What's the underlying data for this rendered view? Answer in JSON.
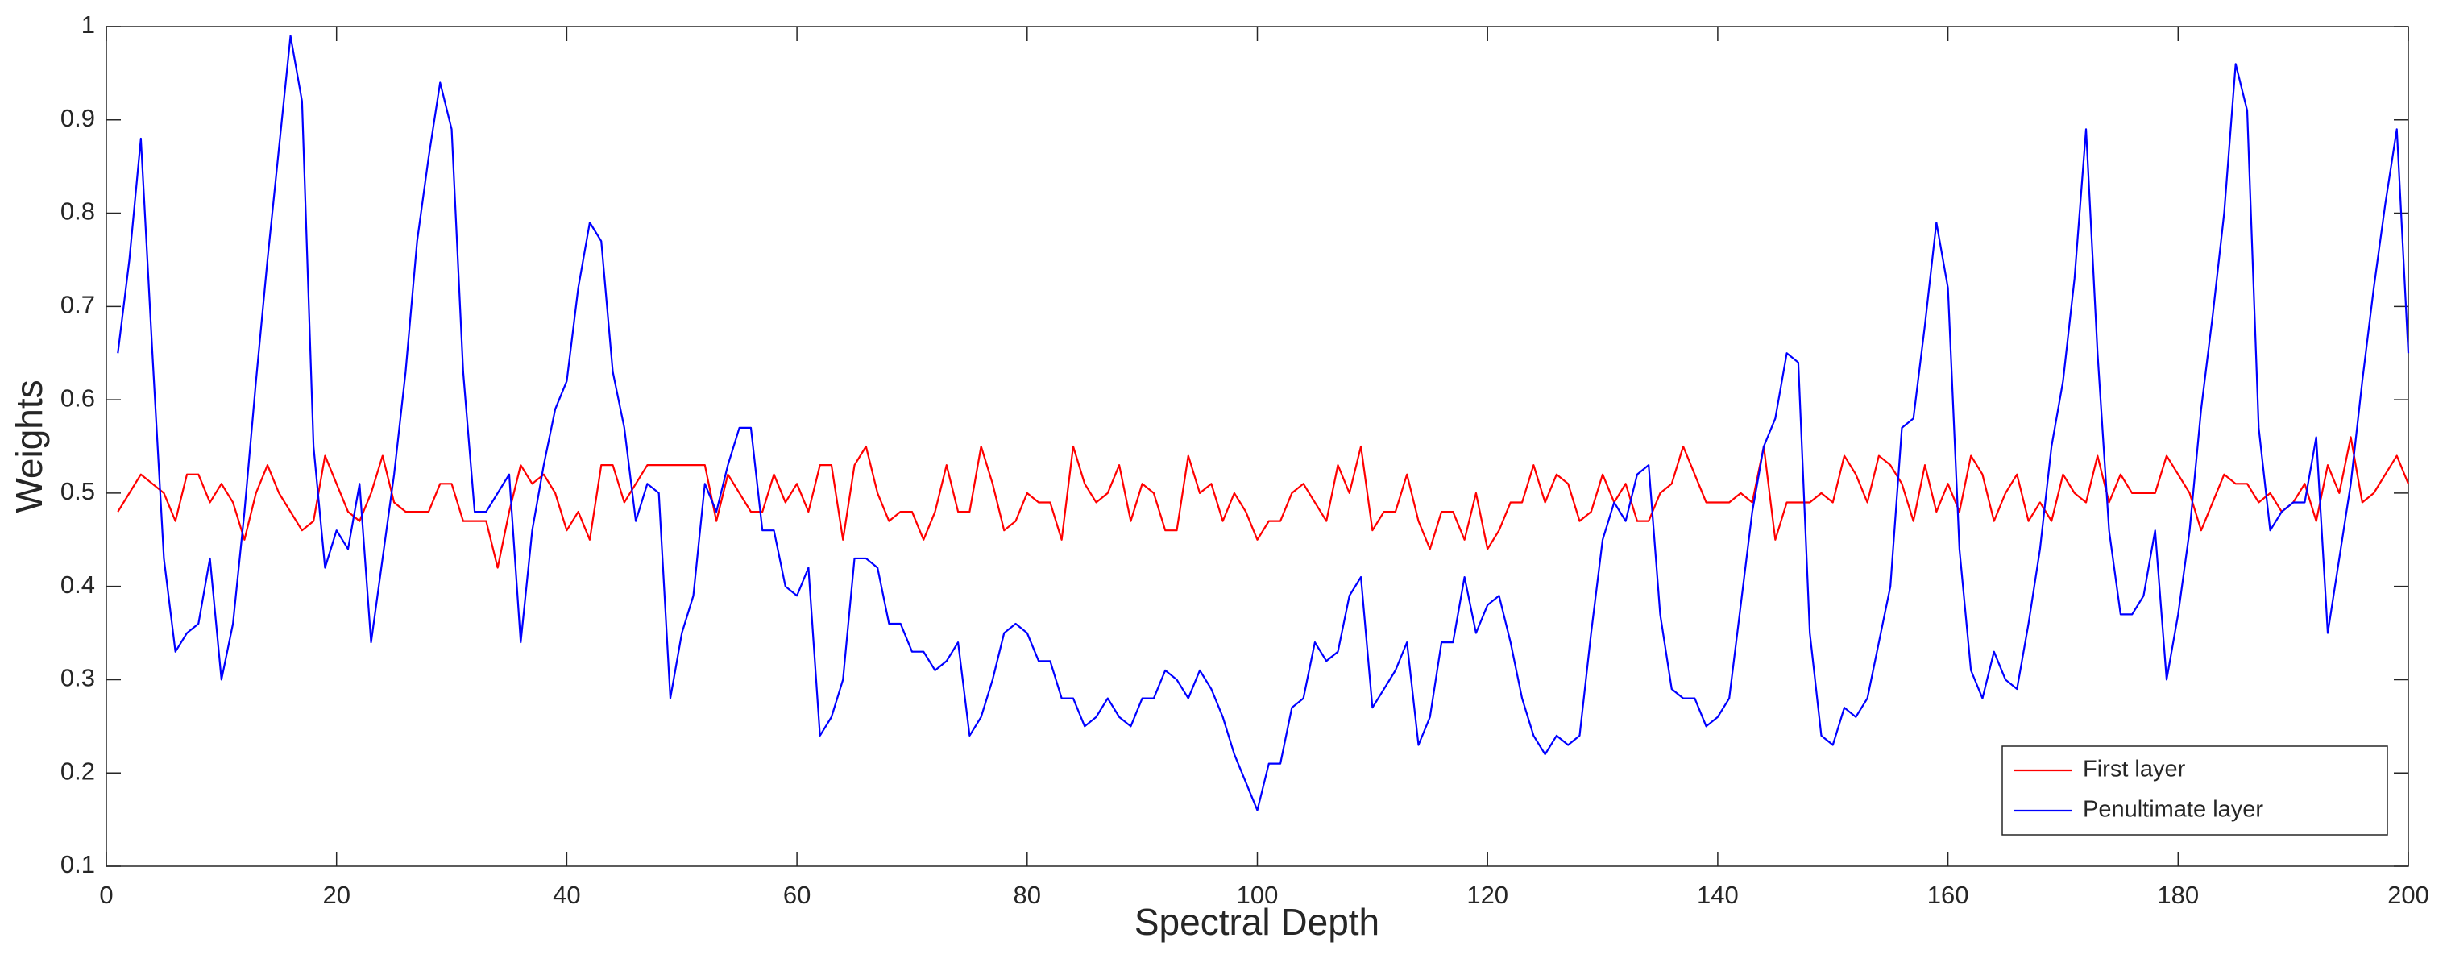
{
  "chart_data": {
    "type": "line",
    "xlabel": "Spectral Depth",
    "ylabel": "Weights",
    "x": [
      1,
      2,
      3,
      4,
      5,
      6,
      7,
      8,
      9,
      10,
      11,
      12,
      13,
      14,
      15,
      16,
      17,
      18,
      19,
      20,
      21,
      22,
      23,
      24,
      25,
      26,
      27,
      28,
      29,
      30,
      31,
      32,
      33,
      34,
      35,
      36,
      37,
      38,
      39,
      40,
      41,
      42,
      43,
      44,
      45,
      46,
      47,
      48,
      49,
      50,
      51,
      52,
      53,
      54,
      55,
      56,
      57,
      58,
      59,
      60,
      61,
      62,
      63,
      64,
      65,
      66,
      67,
      68,
      69,
      70,
      71,
      72,
      73,
      74,
      75,
      76,
      77,
      78,
      79,
      80,
      81,
      82,
      83,
      84,
      85,
      86,
      87,
      88,
      89,
      90,
      91,
      92,
      93,
      94,
      95,
      96,
      97,
      98,
      99,
      100,
      101,
      102,
      103,
      104,
      105,
      106,
      107,
      108,
      109,
      110,
      111,
      112,
      113,
      114,
      115,
      116,
      117,
      118,
      119,
      120,
      121,
      122,
      123,
      124,
      125,
      126,
      127,
      128,
      129,
      130,
      131,
      132,
      133,
      134,
      135,
      136,
      137,
      138,
      139,
      140,
      141,
      142,
      143,
      144,
      145,
      146,
      147,
      148,
      149,
      150,
      151,
      152,
      153,
      154,
      155,
      156,
      157,
      158,
      159,
      160,
      161,
      162,
      163,
      164,
      165,
      166,
      167,
      168,
      169,
      170,
      171,
      172,
      173,
      174,
      175,
      176,
      177,
      178,
      179,
      180,
      181,
      182,
      183,
      184,
      185,
      186,
      187,
      188,
      189,
      190,
      191,
      192,
      193,
      194,
      195,
      196,
      197,
      198,
      199,
      200
    ],
    "series": [
      {
        "name": "First layer",
        "color": "#ff0000",
        "values": [
          0.48,
          0.5,
          0.52,
          0.51,
          0.5,
          0.47,
          0.52,
          0.52,
          0.49,
          0.51,
          0.49,
          0.45,
          0.5,
          0.53,
          0.5,
          0.48,
          0.46,
          0.47,
          0.54,
          0.51,
          0.48,
          0.47,
          0.5,
          0.54,
          0.49,
          0.48,
          0.48,
          0.48,
          0.51,
          0.51,
          0.47,
          0.47,
          0.47,
          0.42,
          0.48,
          0.53,
          0.51,
          0.52,
          0.5,
          0.46,
          0.48,
          0.45,
          0.53,
          0.53,
          0.49,
          0.51,
          0.53,
          0.53,
          0.53,
          0.53,
          0.53,
          0.53,
          0.47,
          0.52,
          0.5,
          0.48,
          0.48,
          0.52,
          0.49,
          0.51,
          0.48,
          0.53,
          0.53,
          0.45,
          0.53,
          0.55,
          0.5,
          0.47,
          0.48,
          0.48,
          0.45,
          0.48,
          0.53,
          0.48,
          0.48,
          0.55,
          0.51,
          0.46,
          0.47,
          0.5,
          0.49,
          0.49,
          0.45,
          0.55,
          0.51,
          0.49,
          0.5,
          0.53,
          0.47,
          0.51,
          0.5,
          0.46,
          0.46,
          0.54,
          0.5,
          0.51,
          0.47,
          0.5,
          0.48,
          0.45,
          0.47,
          0.47,
          0.5,
          0.51,
          0.49,
          0.47,
          0.53,
          0.5,
          0.55,
          0.46,
          0.48,
          0.48,
          0.52,
          0.47,
          0.44,
          0.48,
          0.48,
          0.45,
          0.5,
          0.44,
          0.46,
          0.49,
          0.49,
          0.53,
          0.49,
          0.52,
          0.51,
          0.47,
          0.48,
          0.52,
          0.49,
          0.51,
          0.47,
          0.47,
          0.5,
          0.51,
          0.55,
          0.52,
          0.49,
          0.49,
          0.49,
          0.5,
          0.49,
          0.55,
          0.45,
          0.49,
          0.49,
          0.49,
          0.5,
          0.49,
          0.54,
          0.52,
          0.49,
          0.54,
          0.53,
          0.51,
          0.47,
          0.53,
          0.48,
          0.51,
          0.48,
          0.54,
          0.52,
          0.47,
          0.5,
          0.52,
          0.47,
          0.49,
          0.47,
          0.52,
          0.5,
          0.49,
          0.54,
          0.49,
          0.52,
          0.5,
          0.5,
          0.5,
          0.54,
          0.52,
          0.5,
          0.46,
          0.49,
          0.52,
          0.51,
          0.51,
          0.49,
          0.5,
          0.48,
          0.49,
          0.51,
          0.47,
          0.53,
          0.5,
          0.56,
          0.49,
          0.5,
          0.52,
          0.54,
          0.51
        ]
      },
      {
        "name": "Penultimate layer",
        "color": "#0000ff",
        "values": [
          0.65,
          0.75,
          0.88,
          0.65,
          0.43,
          0.33,
          0.35,
          0.36,
          0.43,
          0.3,
          0.36,
          0.48,
          0.62,
          0.75,
          0.87,
          0.99,
          0.92,
          0.55,
          0.42,
          0.46,
          0.44,
          0.51,
          0.34,
          0.43,
          0.52,
          0.63,
          0.77,
          0.86,
          0.94,
          0.89,
          0.63,
          0.48,
          0.48,
          0.5,
          0.52,
          0.34,
          0.46,
          0.53,
          0.59,
          0.62,
          0.72,
          0.79,
          0.77,
          0.63,
          0.57,
          0.47,
          0.51,
          0.5,
          0.28,
          0.35,
          0.39,
          0.51,
          0.48,
          0.53,
          0.57,
          0.57,
          0.46,
          0.46,
          0.4,
          0.39,
          0.42,
          0.24,
          0.26,
          0.3,
          0.43,
          0.43,
          0.42,
          0.36,
          0.36,
          0.33,
          0.33,
          0.31,
          0.32,
          0.34,
          0.24,
          0.26,
          0.3,
          0.35,
          0.36,
          0.35,
          0.32,
          0.32,
          0.28,
          0.28,
          0.25,
          0.26,
          0.28,
          0.26,
          0.25,
          0.28,
          0.28,
          0.31,
          0.3,
          0.28,
          0.31,
          0.29,
          0.26,
          0.22,
          0.19,
          0.16,
          0.21,
          0.21,
          0.27,
          0.28,
          0.34,
          0.32,
          0.33,
          0.39,
          0.41,
          0.27,
          0.29,
          0.31,
          0.34,
          0.23,
          0.26,
          0.34,
          0.34,
          0.41,
          0.35,
          0.38,
          0.39,
          0.34,
          0.28,
          0.24,
          0.22,
          0.24,
          0.23,
          0.24,
          0.35,
          0.45,
          0.49,
          0.47,
          0.52,
          0.53,
          0.37,
          0.29,
          0.28,
          0.28,
          0.25,
          0.26,
          0.28,
          0.38,
          0.48,
          0.55,
          0.58,
          0.65,
          0.64,
          0.35,
          0.24,
          0.23,
          0.27,
          0.26,
          0.28,
          0.34,
          0.4,
          0.57,
          0.58,
          0.68,
          0.79,
          0.72,
          0.44,
          0.31,
          0.28,
          0.33,
          0.3,
          0.29,
          0.36,
          0.44,
          0.55,
          0.62,
          0.73,
          0.89,
          0.65,
          0.46,
          0.37,
          0.37,
          0.39,
          0.46,
          0.3,
          0.37,
          0.46,
          0.59,
          0.69,
          0.8,
          0.96,
          0.91,
          0.57,
          0.46,
          0.48,
          0.49,
          0.49,
          0.56,
          0.35,
          0.43,
          0.51,
          0.62,
          0.72,
          0.81,
          0.89,
          0.65
        ]
      }
    ],
    "xlim": [
      0,
      200
    ],
    "xticks": [
      0,
      20,
      40,
      60,
      80,
      100,
      120,
      140,
      160,
      180,
      200
    ],
    "ylim": [
      0.1,
      1
    ],
    "yticks": [
      0.1,
      0.2,
      0.3,
      0.4,
      0.5,
      0.6,
      0.7,
      0.8,
      0.9,
      1
    ],
    "grid": false,
    "legend": "lower right"
  }
}
